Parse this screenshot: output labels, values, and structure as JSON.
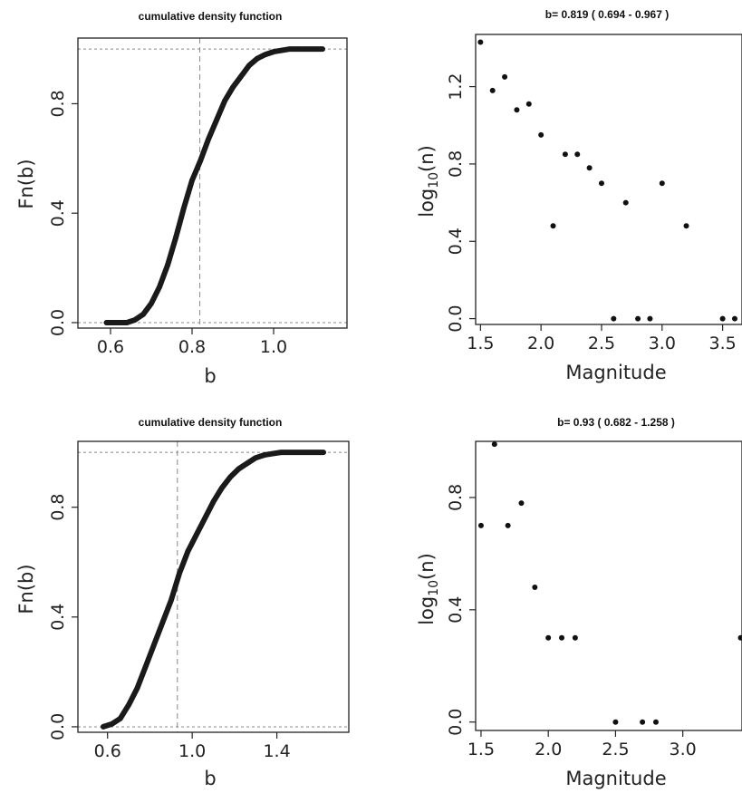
{
  "chart_data": [
    {
      "type": "line",
      "title": "cumulative density function",
      "xlabel": "b",
      "ylabel": "Fn(b)",
      "xlim": [
        0.52,
        1.18
      ],
      "ylim": [
        -0.02,
        1.04
      ],
      "xticks": [
        0.6,
        0.8,
        1.0
      ],
      "xtick_labels": [
        "0.6",
        "0.8",
        "1.0"
      ],
      "yticks": [
        0.0,
        0.4,
        0.8
      ],
      "ytick_labels": [
        "0.0",
        "0.4",
        "0.8"
      ],
      "reference_lines": {
        "vertical_b": 0.819,
        "horizontal": [
          0,
          1
        ]
      },
      "grid": false,
      "series": [
        {
          "x": [
            0.59,
            0.64,
            0.66,
            0.68,
            0.7,
            0.72,
            0.74,
            0.76,
            0.78,
            0.8,
            0.82,
            0.84,
            0.86,
            0.88,
            0.9,
            0.92,
            0.94,
            0.96,
            0.98,
            1.0,
            1.02,
            1.04,
            1.06,
            1.08,
            1.1,
            1.12
          ],
          "y": [
            0.0,
            0.0,
            0.01,
            0.03,
            0.07,
            0.13,
            0.21,
            0.31,
            0.42,
            0.52,
            0.59,
            0.67,
            0.74,
            0.81,
            0.86,
            0.9,
            0.94,
            0.965,
            0.98,
            0.99,
            0.995,
            1.0,
            1.0,
            1.0,
            1.0,
            1.0
          ]
        }
      ]
    },
    {
      "type": "scatter",
      "title": "b= 0.819 ( 0.694 - 0.967 )",
      "xlabel": "Magnitude",
      "ylabel": "log10(n)",
      "xlim": [
        1.46,
        3.66
      ],
      "ylim": [
        -0.03,
        1.47
      ],
      "xticks": [
        1.5,
        2.0,
        2.5,
        3.0,
        3.5
      ],
      "xtick_labels": [
        "1.5",
        "2.0",
        "2.5",
        "3.0",
        "3.5"
      ],
      "yticks": [
        0.0,
        0.4,
        0.8,
        1.2
      ],
      "ytick_labels": [
        "0.0",
        "0.4",
        "0.8",
        "1.2"
      ],
      "grid": false,
      "series": [
        {
          "x": [
            1.5,
            1.6,
            1.7,
            1.8,
            1.9,
            2.0,
            2.1,
            2.2,
            2.3,
            2.4,
            2.5,
            2.6,
            2.7,
            2.8,
            2.9,
            3.0,
            3.2,
            3.5,
            3.6
          ],
          "y": [
            1.43,
            1.18,
            1.25,
            1.08,
            1.11,
            0.95,
            0.48,
            0.85,
            0.85,
            0.78,
            0.7,
            0.0,
            0.6,
            0.0,
            0.0,
            0.7,
            0.48,
            0.0,
            0.0
          ]
        }
      ]
    },
    {
      "type": "line",
      "title": "cumulative density function",
      "xlabel": "b",
      "ylabel": "Fn(b)",
      "xlim": [
        0.46,
        1.74
      ],
      "ylim": [
        -0.02,
        1.04
      ],
      "xticks": [
        0.6,
        1.0,
        1.4
      ],
      "xtick_labels": [
        "0.6",
        "1.0",
        "1.4"
      ],
      "yticks": [
        0.0,
        0.4,
        0.8
      ],
      "ytick_labels": [
        "0.0",
        "0.4",
        "0.8"
      ],
      "reference_lines": {
        "vertical_b": 0.93,
        "horizontal": [
          0,
          1
        ]
      },
      "grid": false,
      "series": [
        {
          "x": [
            0.58,
            0.62,
            0.66,
            0.7,
            0.74,
            0.78,
            0.82,
            0.86,
            0.9,
            0.94,
            0.98,
            1.02,
            1.06,
            1.1,
            1.14,
            1.18,
            1.22,
            1.26,
            1.3,
            1.34,
            1.38,
            1.42,
            1.46,
            1.5,
            1.55,
            1.62
          ],
          "y": [
            0.0,
            0.01,
            0.03,
            0.08,
            0.14,
            0.22,
            0.3,
            0.38,
            0.46,
            0.56,
            0.64,
            0.7,
            0.76,
            0.82,
            0.87,
            0.91,
            0.94,
            0.96,
            0.98,
            0.99,
            0.995,
            1.0,
            1.0,
            1.0,
            1.0,
            1.0
          ]
        }
      ]
    },
    {
      "type": "scatter",
      "title": "b= 0.93 ( 0.682 - 1.258 )",
      "xlabel": "Magnitude",
      "ylabel": "log10(n)",
      "xlim": [
        1.46,
        3.44
      ],
      "ylim": [
        -0.03,
        1.0
      ],
      "xticks": [
        1.5,
        2.0,
        2.5,
        3.0
      ],
      "xtick_labels": [
        "1.5",
        "2.0",
        "2.5",
        "3.0"
      ],
      "yticks": [
        0.0,
        0.4,
        0.8
      ],
      "ytick_labels": [
        "0.0",
        "0.4",
        "0.8"
      ],
      "grid": false,
      "series": [
        {
          "x": [
            1.5,
            1.6,
            1.7,
            1.8,
            1.9,
            2.0,
            2.1,
            2.2,
            2.5,
            2.7,
            2.8,
            3.43
          ],
          "y": [
            0.7,
            0.99,
            0.7,
            0.78,
            0.48,
            0.3,
            0.3,
            0.3,
            0.0,
            0.0,
            0.0,
            0.3
          ]
        }
      ]
    }
  ]
}
